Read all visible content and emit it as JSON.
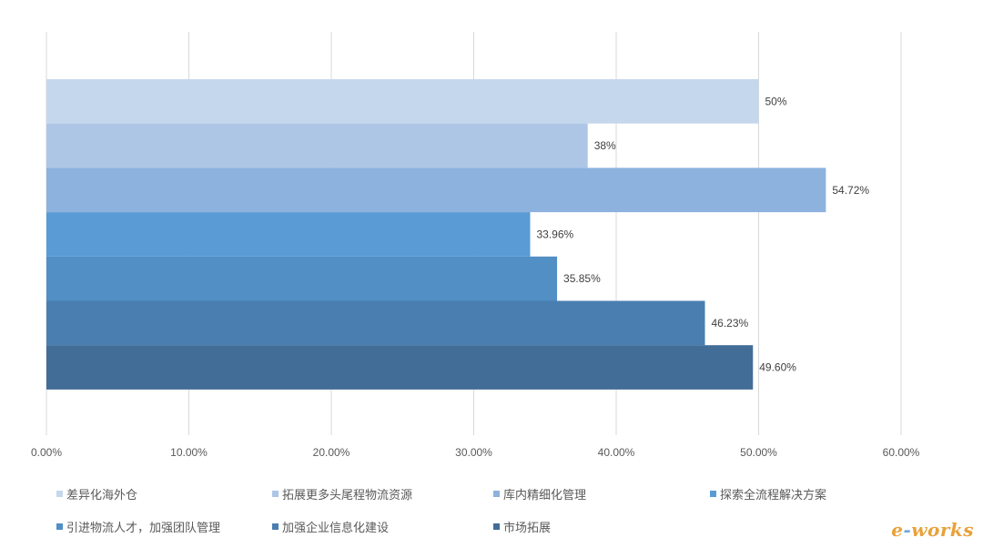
{
  "chart_data": {
    "type": "bar",
    "orientation": "horizontal",
    "title": "",
    "xlabel": "",
    "ylabel": "",
    "xlim": [
      0,
      60
    ],
    "x_ticks": [
      0,
      10,
      20,
      30,
      40,
      50,
      60
    ],
    "x_tick_labels": [
      "0.00%",
      "10.00%",
      "20.00%",
      "30.00%",
      "40.00%",
      "50.00%",
      "60.00%"
    ],
    "grid": "vertical",
    "legend_position": "bottom",
    "series": [
      {
        "name": "差异化海外仓",
        "value": 50,
        "label": "50%",
        "color": "#c5d7ec"
      },
      {
        "name": "拓展更多头尾程物流资源",
        "value": 38,
        "label": "38%",
        "color": "#aec6e6"
      },
      {
        "name": "库内精细化管理",
        "value": 54.72,
        "label": "54.72%",
        "color": "#8db2de"
      },
      {
        "name": "探索全流程解决方案",
        "value": 33.96,
        "label": "33.96%",
        "color": "#5b9bd5"
      },
      {
        "name": "引进物流人才，加强团队管理",
        "value": 35.85,
        "label": "35.85%",
        "color": "#518fc4"
      },
      {
        "name": "加强企业信息化建设",
        "value": 46.23,
        "label": "46.23%",
        "color": "#4a7eb0"
      },
      {
        "name": "市场拓展",
        "value": 49.6,
        "label": "49.60%",
        "color": "#426d97"
      }
    ]
  },
  "watermark": {
    "prefix": "e",
    "dash": "-",
    "rest": "works"
  }
}
